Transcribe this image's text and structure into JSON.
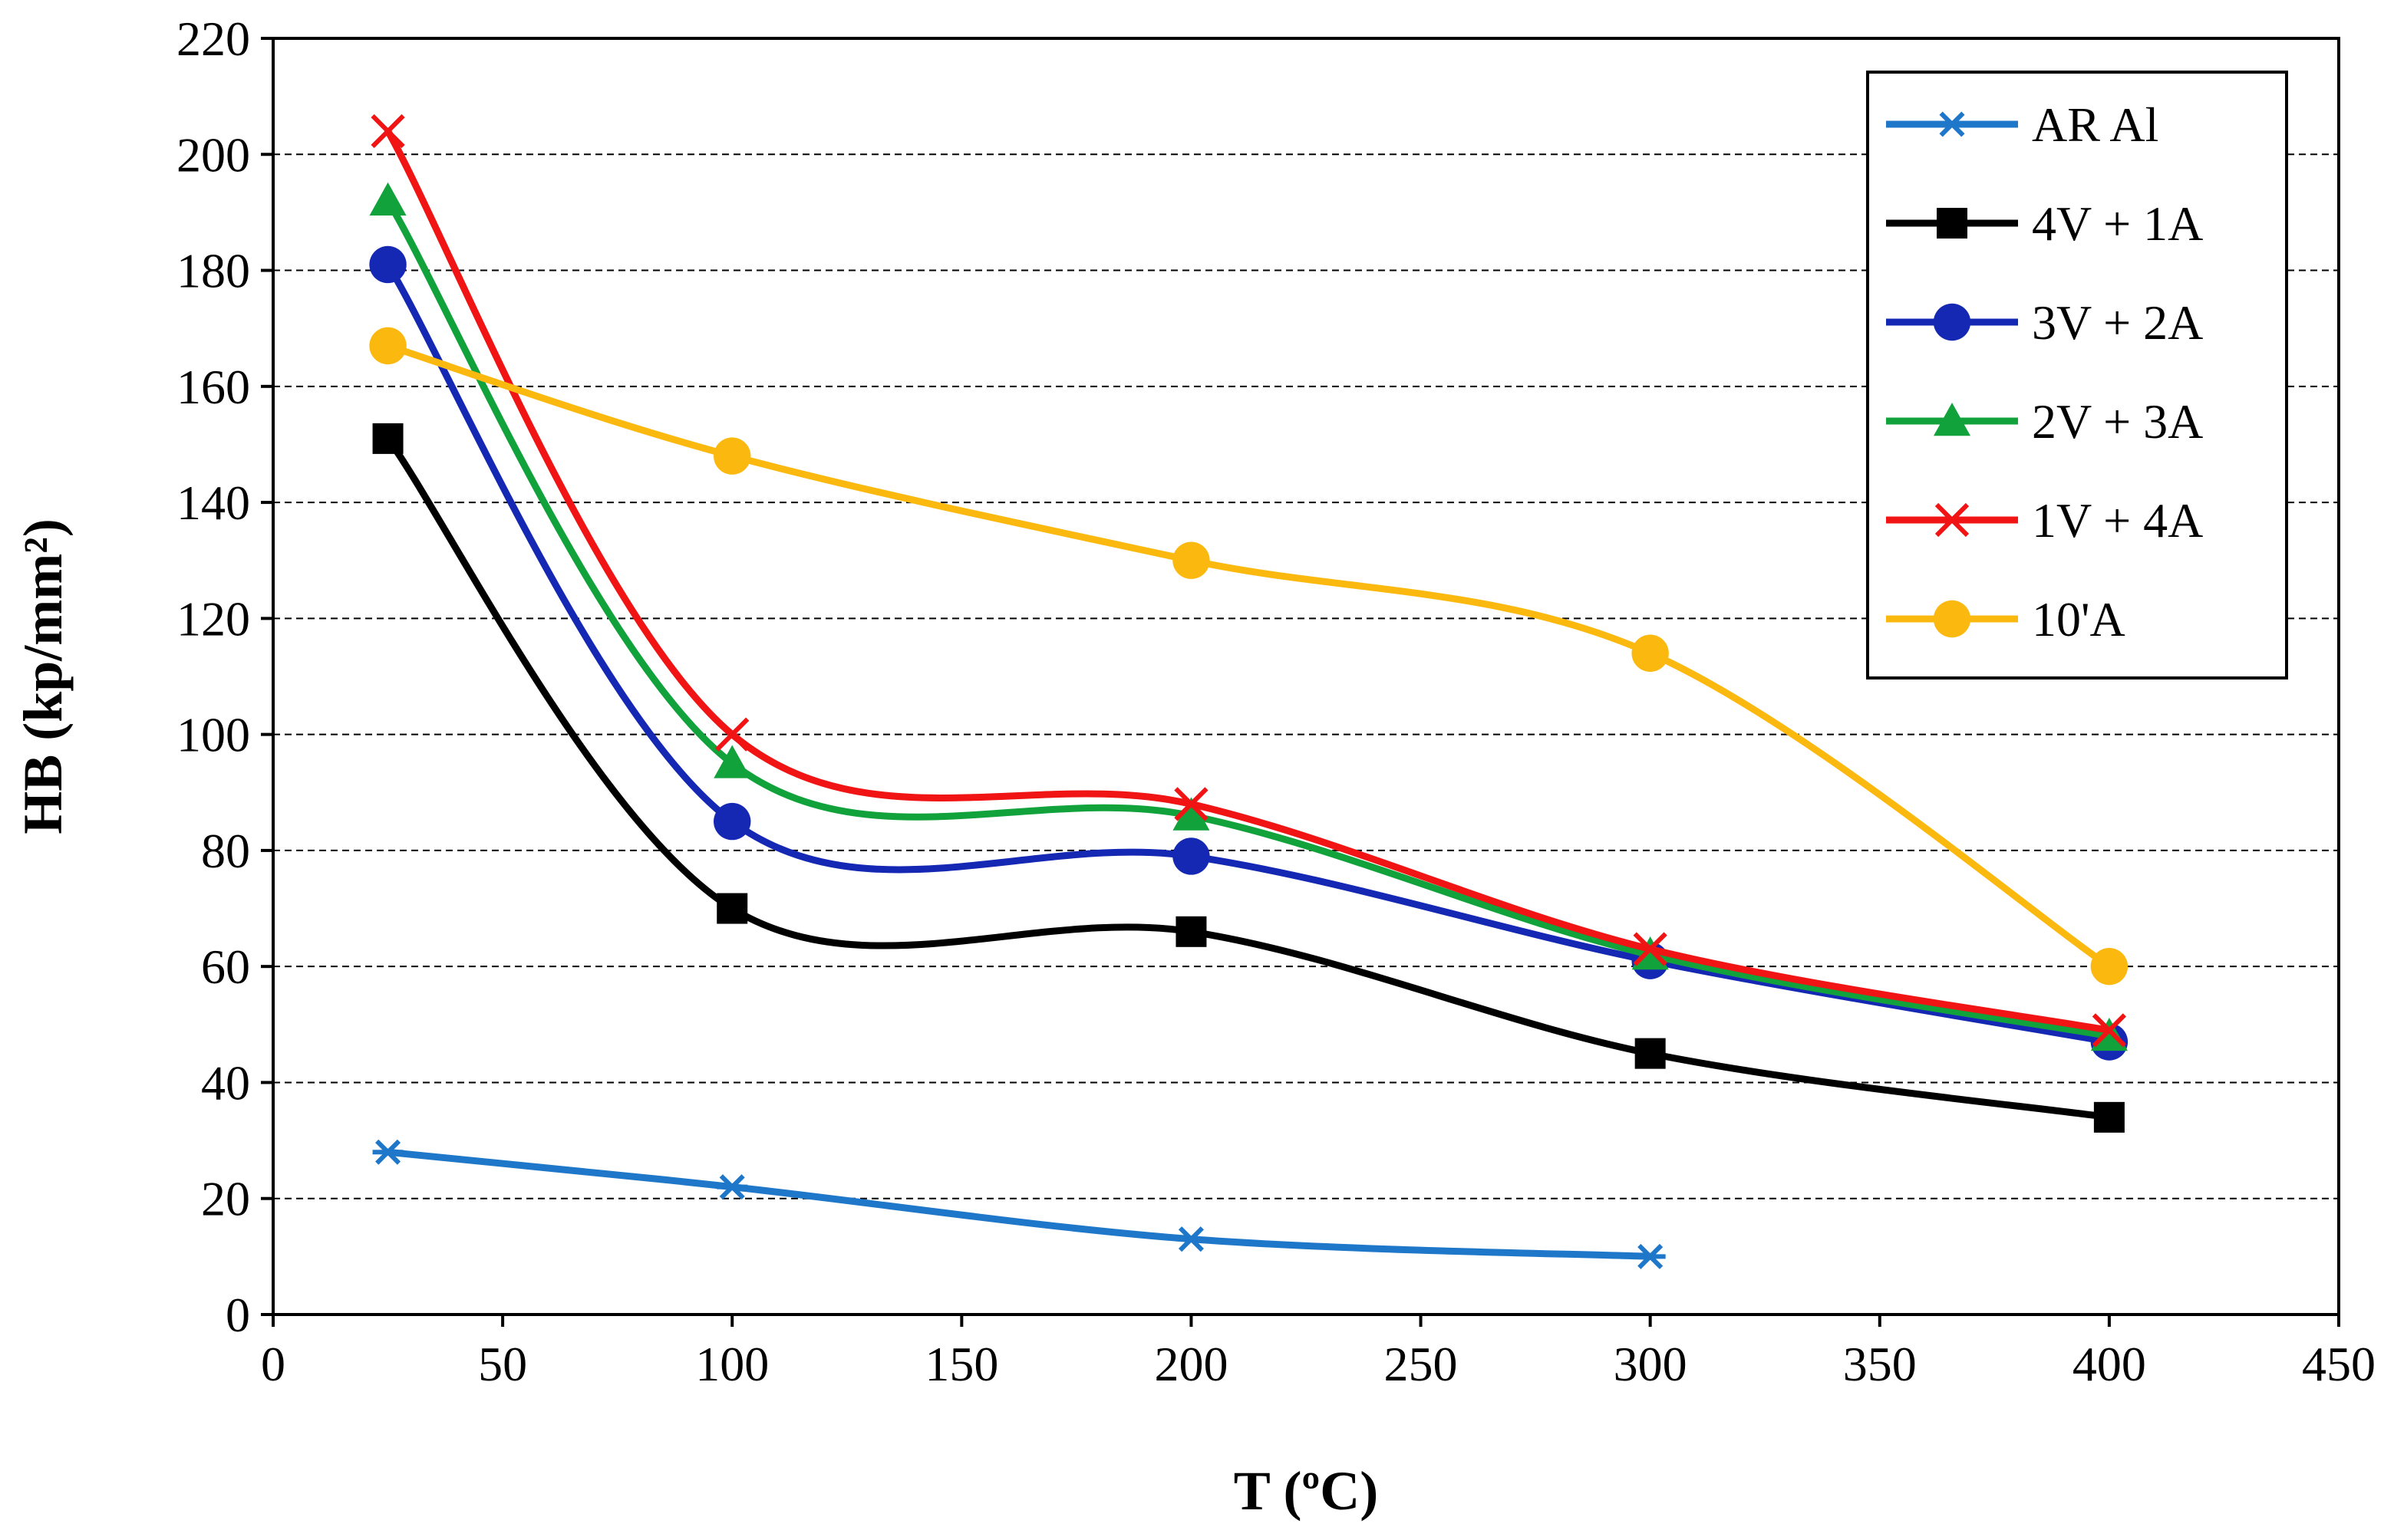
{
  "chart_data": {
    "type": "line",
    "title": "",
    "xlabel": "T (ºC)",
    "ylabel": "HB (kp/mm²)",
    "xlim": [
      0,
      450
    ],
    "ylim": [
      0,
      220
    ],
    "xticks": [
      0,
      50,
      100,
      150,
      200,
      250,
      300,
      350,
      400,
      450
    ],
    "yticks": [
      0,
      20,
      40,
      60,
      80,
      100,
      120,
      140,
      160,
      180,
      200,
      220
    ],
    "grid": "horizontal dashed",
    "legend_position": "top-right",
    "series": [
      {
        "name": "AR Al",
        "color": "#1f77c9",
        "marker": "asterisk",
        "x": [
          25,
          100,
          200,
          300
        ],
        "values": [
          28,
          22,
          13,
          10
        ]
      },
      {
        "name": "4V + 1A",
        "color": "#000000",
        "marker": "square",
        "x": [
          25,
          100,
          200,
          300,
          400
        ],
        "values": [
          151,
          70,
          66,
          45,
          34
        ]
      },
      {
        "name": "3V + 2A",
        "color": "#1428b4",
        "marker": "circle",
        "x": [
          25,
          100,
          200,
          300,
          400
        ],
        "values": [
          181,
          85,
          79,
          61,
          47
        ]
      },
      {
        "name": "2V + 3A",
        "color": "#12a23c",
        "marker": "triangle",
        "x": [
          25,
          100,
          200,
          300,
          400
        ],
        "values": [
          192,
          95,
          86,
          62,
          48
        ]
      },
      {
        "name": "1V + 4A",
        "color": "#f01414",
        "marker": "x",
        "x": [
          25,
          100,
          200,
          300,
          400
        ],
        "values": [
          204,
          100,
          88,
          63,
          49
        ]
      },
      {
        "name": "10'A",
        "color": "#fbb80f",
        "marker": "circle",
        "x": [
          25,
          100,
          200,
          300,
          400
        ],
        "values": [
          167,
          148,
          130,
          114,
          60
        ]
      }
    ]
  }
}
